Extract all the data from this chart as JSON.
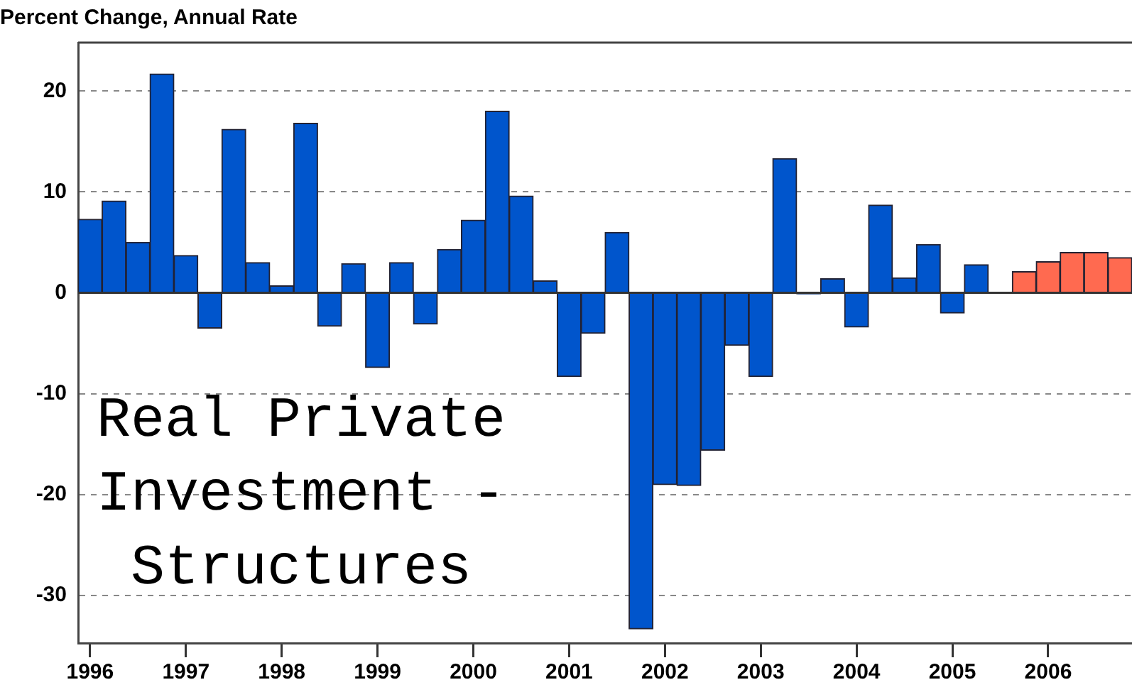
{
  "chart_data": {
    "type": "bar",
    "title": "Percent Change, Annual Rate",
    "categories": [
      "1996",
      null,
      null,
      null,
      "1997",
      null,
      null,
      null,
      "1998",
      null,
      null,
      null,
      "1999",
      null,
      null,
      null,
      "2000",
      null,
      null,
      null,
      "2001",
      null,
      null,
      null,
      "2002",
      null,
      null,
      null,
      "2003",
      null,
      null,
      null,
      "2004",
      null,
      null,
      null,
      "2005",
      null,
      null,
      null,
      "2006",
      null,
      null,
      null
    ],
    "series": [
      {
        "color": "#0055cc",
        "values": [
          7.3,
          9.1,
          5.0,
          21.7,
          3.7,
          -3.5,
          16.2,
          3.0,
          0.7,
          16.8,
          -3.3,
          2.9,
          -7.4,
          3.0,
          -3.1,
          4.3,
          7.2,
          18.0,
          9.6,
          1.2,
          -8.3,
          -4.0,
          6.0,
          -33.3,
          -19.0,
          -19.1,
          -15.6,
          -5.2,
          -8.3,
          13.3,
          -0.1,
          1.4,
          -3.4,
          8.7,
          1.5,
          4.8,
          -2.0,
          2.8,
          null,
          null,
          null,
          null,
          null,
          null
        ]
      },
      {
        "color": "#ff6a50",
        "values": [
          null,
          null,
          null,
          null,
          null,
          null,
          null,
          null,
          null,
          null,
          null,
          null,
          null,
          null,
          null,
          null,
          null,
          null,
          null,
          null,
          null,
          null,
          null,
          null,
          null,
          null,
          null,
          null,
          null,
          null,
          null,
          null,
          null,
          null,
          null,
          null,
          null,
          null,
          null,
          2.1,
          3.1,
          4.0,
          4.0,
          3.5
        ]
      }
    ],
    "ylim": [
      -34.7,
      24.8
    ],
    "yticks": [
      -30,
      -20,
      -10,
      0,
      10,
      20
    ],
    "grid": "y",
    "legend": false,
    "ref_lines": [
      {
        "axis": "y",
        "value": 0
      }
    ],
    "annotations": [
      "Real Private Investment - Structures"
    ]
  }
}
